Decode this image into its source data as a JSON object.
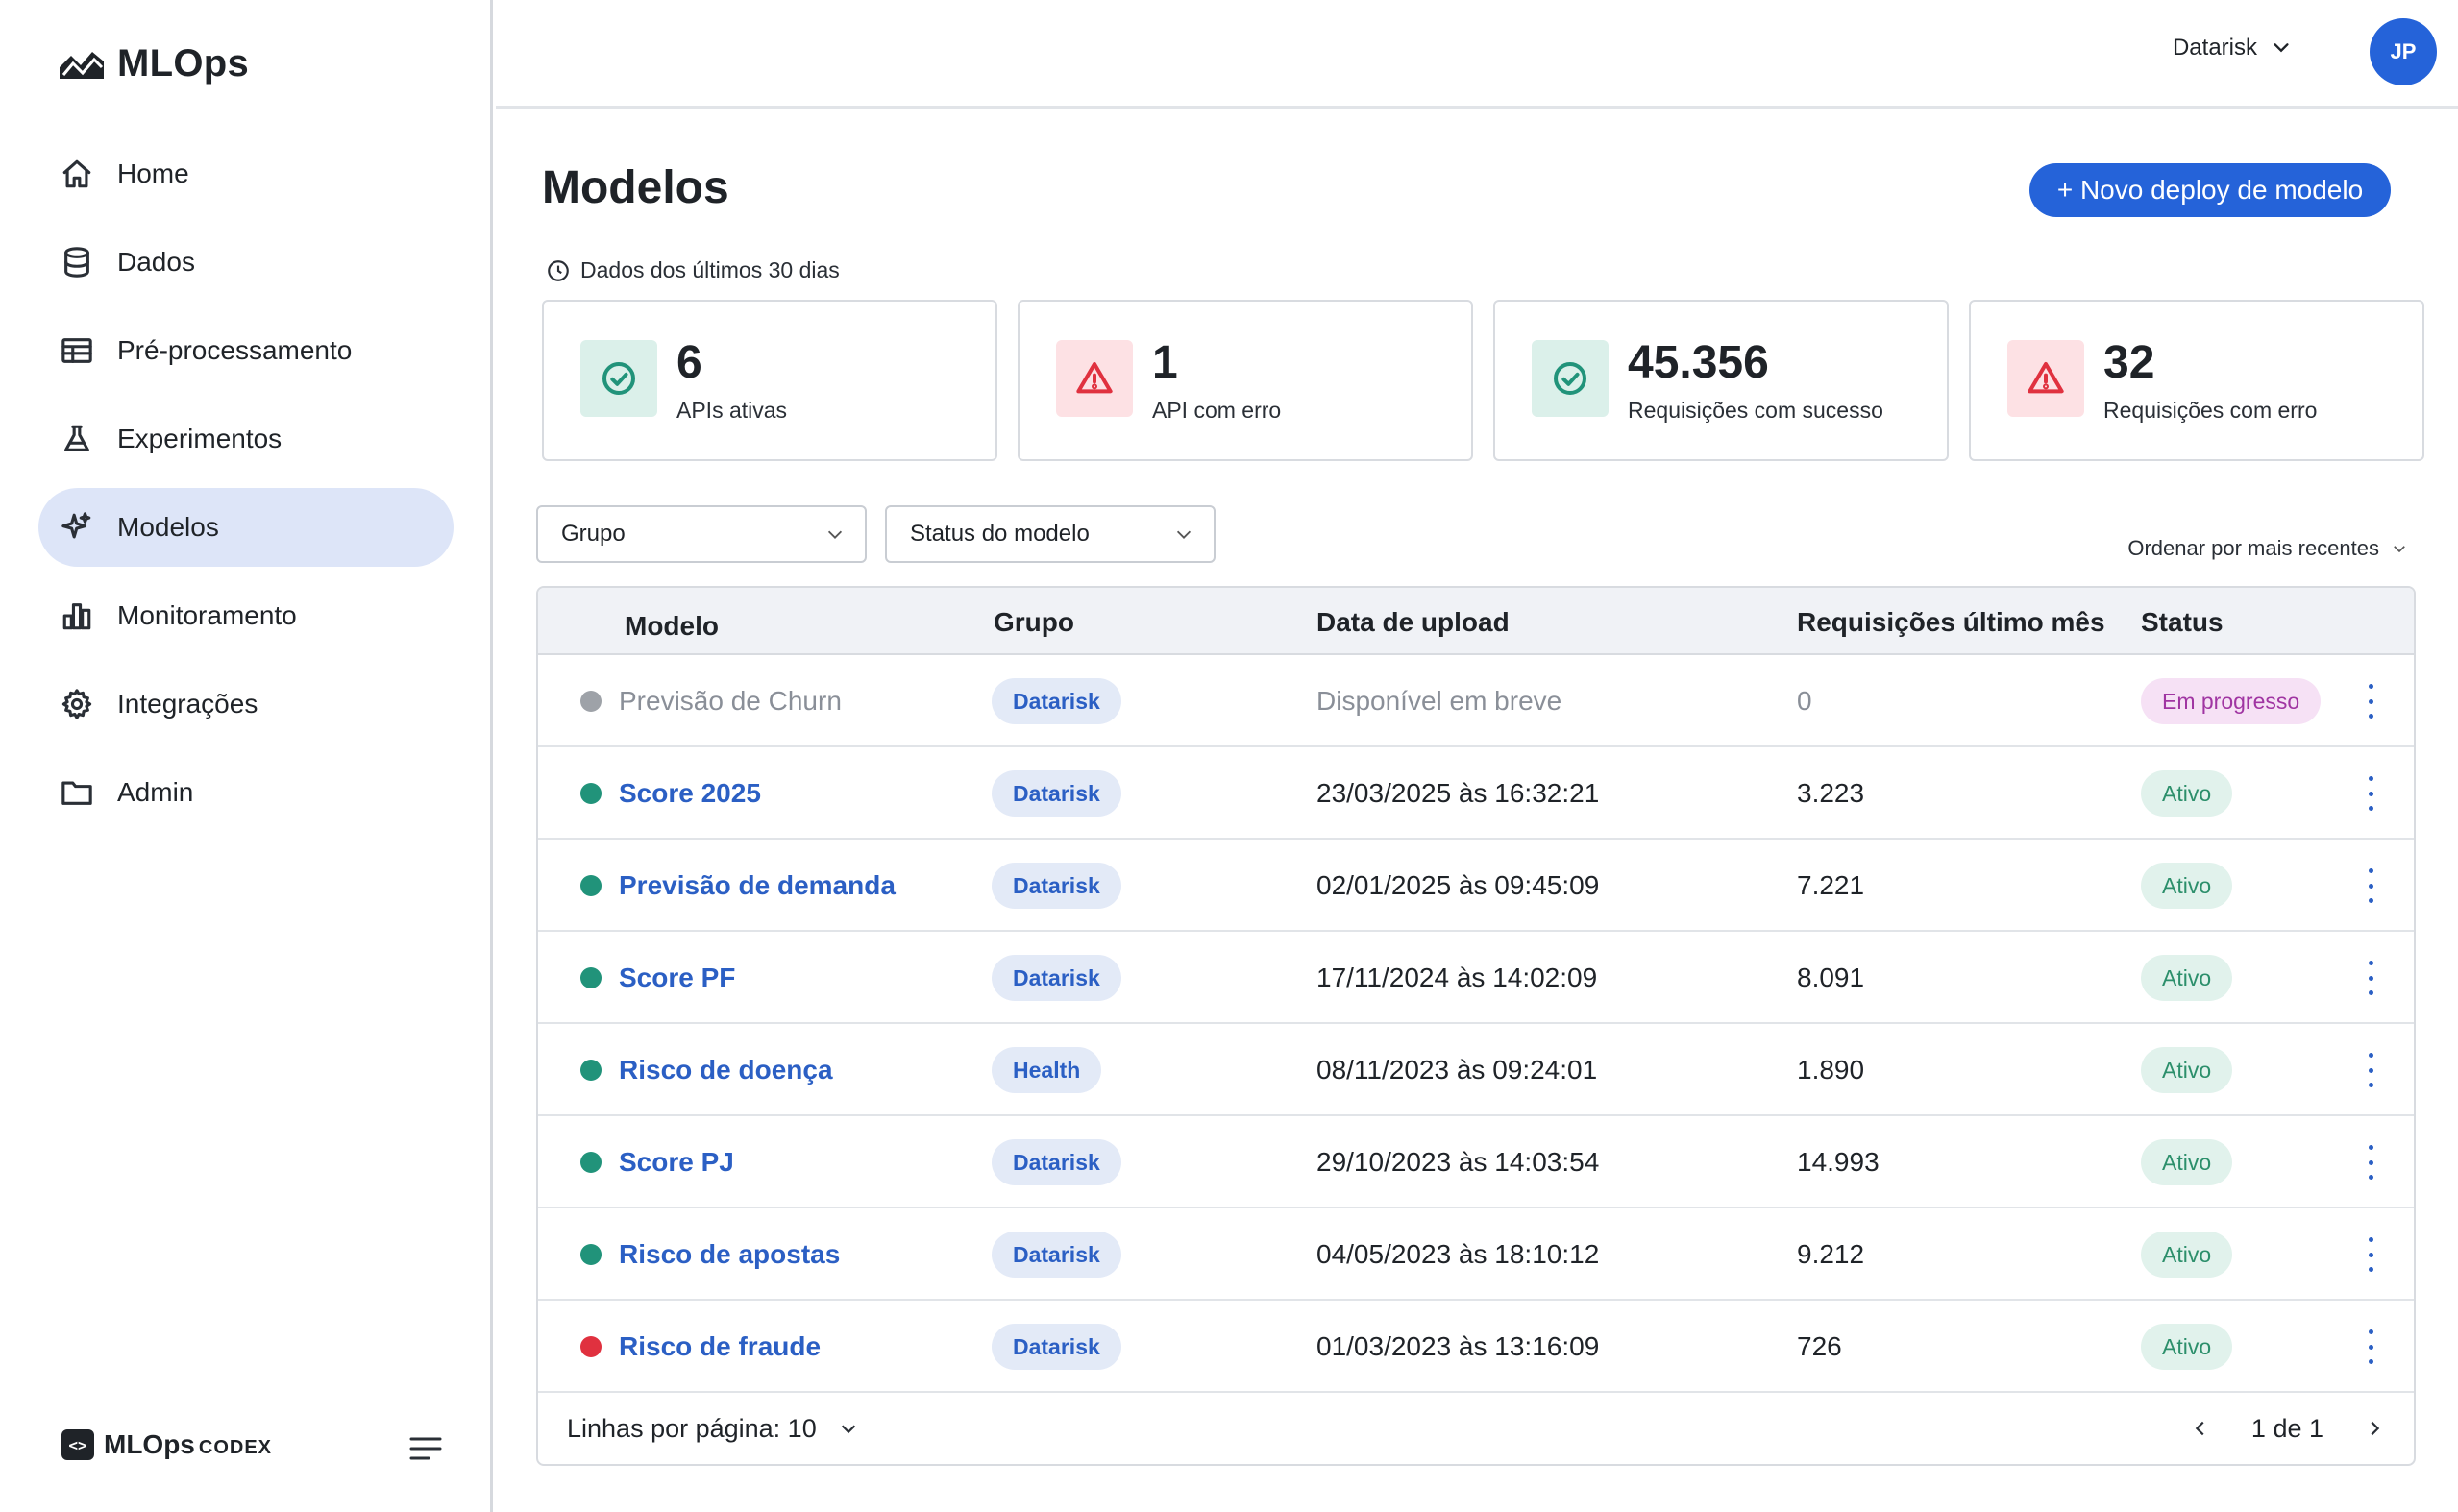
{
  "app": {
    "name": "MLOps"
  },
  "sidebar": {
    "items": [
      {
        "label": "Home",
        "icon": "home-icon",
        "active": false
      },
      {
        "label": "Dados",
        "icon": "database-icon",
        "active": false
      },
      {
        "label": "Pré-processamento",
        "icon": "table-icon",
        "active": false
      },
      {
        "label": "Experimentos",
        "icon": "flask-icon",
        "active": false
      },
      {
        "label": "Modelos",
        "icon": "sparkle-icon",
        "active": true
      },
      {
        "label": "Monitoramento",
        "icon": "bar-chart-icon",
        "active": false
      },
      {
        "label": "Integrações",
        "icon": "gear-icon",
        "active": false
      },
      {
        "label": "Admin",
        "icon": "folder-icon",
        "active": false
      }
    ],
    "footer": {
      "badge": "<>",
      "name": "MLOps",
      "sub": "CODEX"
    }
  },
  "topbar": {
    "org": "Datarisk",
    "avatar_initials": "JP"
  },
  "main": {
    "title": "Modelos",
    "new_button": "+ Novo deploy de modelo",
    "period": "Dados dos últimos 30 dias",
    "stats": [
      {
        "value": "6",
        "label": "APIs ativas",
        "kind": "ok"
      },
      {
        "value": "1",
        "label": "API com erro",
        "kind": "err"
      },
      {
        "value": "45.356",
        "label": "Requisições com sucesso",
        "kind": "ok"
      },
      {
        "value": "32",
        "label": "Requisições com erro",
        "kind": "err"
      }
    ],
    "filters": {
      "group": "Grupo",
      "status": "Status do modelo"
    },
    "sort": "Ordenar por mais recentes",
    "table": {
      "headers": {
        "model": "Modelo",
        "group": "Grupo",
        "upload": "Data de upload",
        "requests": "Requisições último mês",
        "status": "Status"
      },
      "rows": [
        {
          "model": "Previsão de Churn",
          "group": "Datarisk",
          "upload": "Disponível em breve",
          "requests": "0",
          "status": "Em progresso",
          "dot": "#9ea2a8",
          "muted": true
        },
        {
          "model": "Score 2025",
          "group": "Datarisk",
          "upload": "23/03/2025 às 16:32:21",
          "requests": "3.223",
          "status": "Ativo",
          "dot": "#21937a",
          "muted": false
        },
        {
          "model": "Previsão de demanda",
          "group": "Datarisk",
          "upload": "02/01/2025 às 09:45:09",
          "requests": "7.221",
          "status": "Ativo",
          "dot": "#21937a",
          "muted": false
        },
        {
          "model": "Score PF",
          "group": "Datarisk",
          "upload": "17/11/2024 às 14:02:09",
          "requests": "8.091",
          "status": "Ativo",
          "dot": "#21937a",
          "muted": false
        },
        {
          "model": "Risco de doença",
          "group": "Health",
          "upload": "08/11/2023 às 09:24:01",
          "requests": "1.890",
          "status": "Ativo",
          "dot": "#21937a",
          "muted": false
        },
        {
          "model": "Score PJ",
          "group": "Datarisk",
          "upload": "29/10/2023 às 14:03:54",
          "requests": "14.993",
          "status": "Ativo",
          "dot": "#21937a",
          "muted": false
        },
        {
          "model": "Risco de apostas",
          "group": "Datarisk",
          "upload": "04/05/2023 às 18:10:12",
          "requests": "9.212",
          "status": "Ativo",
          "dot": "#21937a",
          "muted": false
        },
        {
          "model": "Risco de fraude",
          "group": "Datarisk",
          "upload": "01/03/2023 às 13:16:09",
          "requests": "726",
          "status": "Ativo",
          "dot": "#e0313f",
          "muted": false
        }
      ]
    },
    "footer": {
      "rows_per_page": "Linhas por página: 10",
      "page": "1 de 1"
    }
  },
  "colors": {
    "accent": "#2563d9",
    "link": "#2b5fc4",
    "ok": "#21937a",
    "error": "#e0313f",
    "active_nav": "#dde5f8"
  }
}
